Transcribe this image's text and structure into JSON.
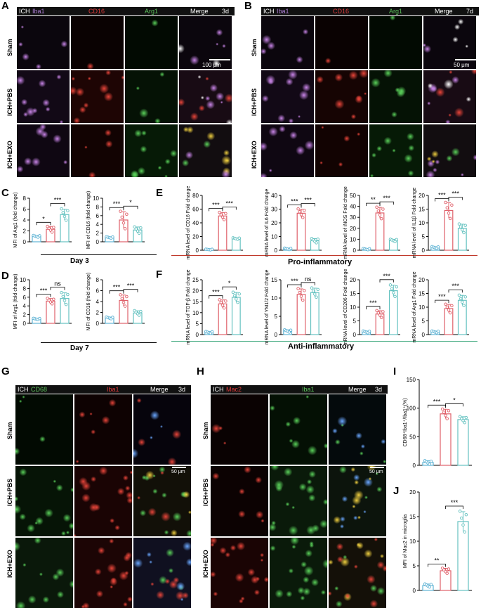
{
  "panel_labels": {
    "A": "A",
    "B": "B",
    "C": "C",
    "D": "D",
    "E": "E",
    "F": "F",
    "G": "G",
    "H": "H",
    "I": "I",
    "J": "J"
  },
  "row_labels": {
    "sham": "Sham",
    "pbs": "ICH+PBS",
    "exo": "ICH+EXO"
  },
  "headers": {
    "A": {
      "ich": "ICH",
      "c1": "Iba1",
      "c2": "CD16",
      "c3": "Arg1",
      "merge": "Merge",
      "time": "3d"
    },
    "B": {
      "ich": "ICH",
      "c1": "Iba1",
      "c2": "CD16",
      "c3": "Arg1",
      "merge": "Merge",
      "time": "7d"
    },
    "G": {
      "ich": "ICH",
      "c1": "CD68",
      "c2": "Iba1",
      "merge": "Merge",
      "time": "3d"
    },
    "H": {
      "ich": "ICH",
      "c1": "Mac2",
      "c2": "Iba1",
      "merge": "Merge",
      "time": "3d"
    }
  },
  "scale_bars": {
    "A": "100 μm",
    "B": "50 μm",
    "G": "50 μm",
    "H": "50 μm"
  },
  "section_labels": {
    "day3": "Day 3",
    "day7": "Day 7",
    "pro": "Pro-inflammatory",
    "anti": "Anti-inflammatory"
  },
  "colors": {
    "sham": "#5fb3d4",
    "pbs": "#e0606a",
    "exo": "#64c2c0",
    "pro_line": "#c0392b",
    "anti_line": "#3aa77b"
  },
  "chart_data": [
    {
      "id": "C1",
      "type": "bar",
      "categories": [
        "Sham",
        "ICH+PBS",
        "ICH+EXO"
      ],
      "values": [
        1,
        2.3,
        5
      ],
      "errors": [
        0.15,
        0.5,
        1.0
      ],
      "ylabel": "MFI of Arg1 (fold change)",
      "ylim": [
        0,
        8
      ],
      "ticks": [
        "0",
        "2",
        "4",
        "6",
        "8"
      ],
      "sig": [
        {
          "a": 0,
          "b": 1,
          "t": "*"
        },
        {
          "a": 1,
          "b": 2,
          "t": "***"
        }
      ]
    },
    {
      "id": "C2",
      "type": "bar",
      "categories": [
        "Sham",
        "ICH+PBS",
        "ICH+EXO"
      ],
      "values": [
        1,
        5,
        2.7
      ],
      "errors": [
        0.15,
        1.9,
        0.7
      ],
      "ylabel": "MFI of CD16 (fold change)",
      "ylim": [
        0,
        10
      ],
      "ticks": [
        "0",
        "2",
        "4",
        "6",
        "8",
        "10"
      ],
      "sig": [
        {
          "a": 0,
          "b": 1,
          "t": "***"
        },
        {
          "a": 1,
          "b": 2,
          "t": "*"
        }
      ]
    },
    {
      "id": "D1",
      "type": "bar",
      "categories": [
        "Sham",
        "ICH+PBS",
        "ICH+EXO"
      ],
      "values": [
        1,
        5.1,
        5.7
      ],
      "errors": [
        0.15,
        0.6,
        1.3
      ],
      "ylabel": "MFI of Arg1 (fold change)",
      "ylim": [
        0,
        10
      ],
      "ticks": [
        "0",
        "2",
        "4",
        "6",
        "8",
        "10"
      ],
      "sig": [
        {
          "a": 0,
          "b": 1,
          "t": "***"
        },
        {
          "a": 1,
          "b": 2,
          "t": "ns"
        }
      ]
    },
    {
      "id": "D2",
      "type": "bar",
      "categories": [
        "Sham",
        "ICH+PBS",
        "ICH+EXO"
      ],
      "values": [
        1,
        4.2,
        1.9
      ],
      "errors": [
        0.15,
        1.0,
        0.4
      ],
      "ylabel": "MFI of CD16 (fold change)",
      "ylim": [
        0,
        8
      ],
      "ticks": [
        "0",
        "2",
        "4",
        "6",
        "8"
      ],
      "sig": [
        {
          "a": 0,
          "b": 1,
          "t": "***"
        },
        {
          "a": 1,
          "b": 2,
          "t": "***"
        }
      ]
    },
    {
      "id": "E1",
      "type": "bar",
      "categories": [
        "Sham",
        "ICH+PBS",
        "ICH+EXO"
      ],
      "values": [
        1,
        50,
        17
      ],
      "errors": [
        0.5,
        5,
        1
      ],
      "ylabel": "mRNA level of CD16 Fold change",
      "ylim": [
        0,
        80
      ],
      "ticks": [
        "0",
        "20",
        "40",
        "60",
        "80"
      ],
      "sig": [
        {
          "a": 0,
          "b": 1,
          "t": "***"
        },
        {
          "a": 1,
          "b": 2,
          "t": "***"
        }
      ]
    },
    {
      "id": "E2",
      "type": "bar",
      "categories": [
        "Sham",
        "ICH+PBS",
        "ICH+EXO"
      ],
      "values": [
        1,
        27,
        7
      ],
      "errors": [
        0.5,
        3,
        1.5
      ],
      "ylabel": "mRNA level of IL6 Fold change",
      "ylim": [
        0,
        40
      ],
      "ticks": [
        "0",
        "10",
        "20",
        "30",
        "40"
      ],
      "sig": [
        {
          "a": 0,
          "b": 1,
          "t": "***"
        },
        {
          "a": 1,
          "b": 2,
          "t": "***"
        }
      ]
    },
    {
      "id": "E3",
      "type": "bar",
      "categories": [
        "Sham",
        "ICH+PBS",
        "ICH+EXO"
      ],
      "values": [
        1,
        34,
        9
      ],
      "errors": [
        0.5,
        5,
        1
      ],
      "ylabel": "mRNA level of iNOS Fold change",
      "ylim": [
        0,
        50
      ],
      "ticks": [
        "0",
        "10",
        "20",
        "30",
        "40",
        "50"
      ],
      "sig": [
        {
          "a": 0,
          "b": 1,
          "t": "**"
        },
        {
          "a": 1,
          "b": 2,
          "t": "***"
        }
      ]
    },
    {
      "id": "E4",
      "type": "bar",
      "categories": [
        "Sham",
        "ICH+PBS",
        "ICH+EXO"
      ],
      "values": [
        1,
        14.5,
        8
      ],
      "errors": [
        0.3,
        2.8,
        1.5
      ],
      "ylabel": "mRNA level of IL1β Fold change",
      "ylim": [
        0,
        20
      ],
      "ticks": [
        "0",
        "5",
        "10",
        "15",
        "20"
      ],
      "sig": [
        {
          "a": 0,
          "b": 1,
          "t": "***"
        },
        {
          "a": 1,
          "b": 2,
          "t": "***"
        }
      ]
    },
    {
      "id": "F1",
      "type": "bar",
      "categories": [
        "Sham",
        "ICH+PBS",
        "ICH+EXO"
      ],
      "values": [
        1,
        14,
        17
      ],
      "errors": [
        0.4,
        1.8,
        2.2
      ],
      "ylabel": "mRNA level of TGF-β Fold change",
      "ylim": [
        0,
        25
      ],
      "ticks": [
        "0",
        "5",
        "10",
        "15",
        "20",
        "25"
      ],
      "sig": [
        {
          "a": 0,
          "b": 1,
          "t": "***"
        },
        {
          "a": 1,
          "b": 2,
          "t": "*"
        }
      ]
    },
    {
      "id": "F2",
      "type": "bar",
      "categories": [
        "Sham",
        "ICH+PBS",
        "ICH+EXO"
      ],
      "values": [
        1,
        11,
        11.5
      ],
      "errors": [
        0.3,
        1.5,
        1.2
      ],
      "ylabel": "mRNA level of YM1/2 Fold change",
      "ylim": [
        0,
        15
      ],
      "ticks": [
        "0",
        "5",
        "10",
        "15"
      ],
      "sig": [
        {
          "a": 0,
          "b": 1,
          "t": "***"
        },
        {
          "a": 1,
          "b": 2,
          "t": "ns"
        }
      ]
    },
    {
      "id": "F3",
      "type": "bar",
      "categories": [
        "Sham",
        "ICH+PBS",
        "ICH+EXO"
      ],
      "values": [
        1,
        7.5,
        16
      ],
      "errors": [
        0.3,
        1.2,
        2
      ],
      "ylabel": "mRNA level of CD206 Fold change",
      "ylim": [
        0,
        20
      ],
      "ticks": [
        "0",
        "5",
        "10",
        "15",
        "20"
      ],
      "sig": [
        {
          "a": 0,
          "b": 1,
          "t": "***"
        },
        {
          "a": 1,
          "b": 2,
          "t": "***"
        }
      ]
    },
    {
      "id": "F4",
      "type": "bar",
      "categories": [
        "Sham",
        "ICH+PBS",
        "ICH+EXO"
      ],
      "values": [
        1,
        9.5,
        12.5
      ],
      "errors": [
        0.3,
        1.5,
        1.8
      ],
      "ylabel": "mRNA level of Arg1 Fold change",
      "ylim": [
        0,
        20
      ],
      "ticks": [
        "0",
        "5",
        "10",
        "15",
        "20"
      ],
      "sig": [
        {
          "a": 0,
          "b": 1,
          "t": "***"
        },
        {
          "a": 1,
          "b": 2,
          "t": "***"
        }
      ]
    },
    {
      "id": "I",
      "type": "bar",
      "categories": [
        "Sham",
        "ICH+PBS",
        "ICH+EXO"
      ],
      "values": [
        5,
        90,
        80
      ],
      "errors": [
        3,
        8,
        5
      ],
      "ylabel": "CD68⁺Iba1⁺/Iba1⁺(%)",
      "ylim": [
        0,
        150
      ],
      "ticks": [
        "0",
        "50",
        "100",
        "150"
      ],
      "sig": [
        {
          "a": 0,
          "b": 1,
          "t": "***"
        },
        {
          "a": 1,
          "b": 2,
          "t": "*"
        }
      ]
    },
    {
      "id": "J",
      "type": "bar",
      "categories": [
        "Sham",
        "ICH+PBS",
        "ICH+EXO"
      ],
      "values": [
        1,
        4,
        14
      ],
      "errors": [
        0.3,
        0.5,
        2
      ],
      "ylabel": "MFI of Mac2 in microglia",
      "ylim": [
        0,
        20
      ],
      "ticks": [
        "0",
        "5",
        "10",
        "15",
        "20"
      ],
      "sig": [
        {
          "a": 0,
          "b": 1,
          "t": "**"
        },
        {
          "a": 1,
          "b": 2,
          "t": "***"
        }
      ]
    }
  ]
}
